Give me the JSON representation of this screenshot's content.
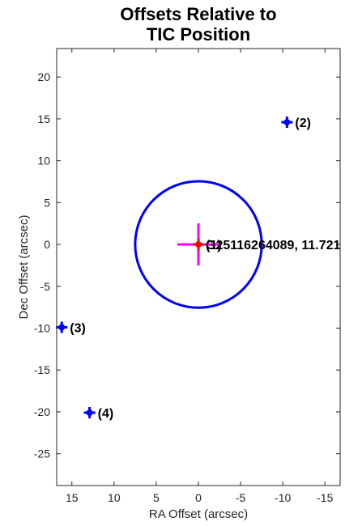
{
  "chart_data": {
    "type": "scatter",
    "title_lines": [
      "Offsets Relative to",
      "TIC Position"
    ],
    "xlabel": "RA Offset (arcsec)",
    "ylabel": "Dec Offset (arcsec)",
    "xlim": [
      16.8,
      -16.8
    ],
    "ylim": [
      -28.8,
      23.4
    ],
    "x_reversed": true,
    "grid": false,
    "x_ticks": [
      15,
      10,
      5,
      0,
      -5,
      -10,
      -15
    ],
    "x_tick_labels": [
      "15",
      "10",
      "5",
      "0",
      "-5",
      "-10",
      "-15"
    ],
    "y_ticks": [
      20,
      15,
      10,
      5,
      0,
      -5,
      -10,
      -15,
      -20,
      -25
    ],
    "y_tick_labels": [
      "20",
      "15",
      "10",
      "5",
      "0",
      "-5",
      "-10",
      "-15",
      "-20",
      "-25"
    ],
    "aperture_circle": {
      "center": [
        0,
        0
      ],
      "radius": 7.5,
      "color": "#0000ff"
    },
    "target_marker": {
      "x": 0,
      "y": 0,
      "color": "#ff0000",
      "cross_color": "#ff00ff",
      "label": "G25116264089, 11.721"
    },
    "overlap_label": "(1)",
    "sources": [
      {
        "label": "(2)",
        "x": -10.5,
        "y": 14.6
      },
      {
        "label": "(3)",
        "x": 16.2,
        "y": -9.9
      },
      {
        "label": "(4)",
        "x": 12.9,
        "y": -20.1
      }
    ],
    "source_color": "#0000ff"
  }
}
